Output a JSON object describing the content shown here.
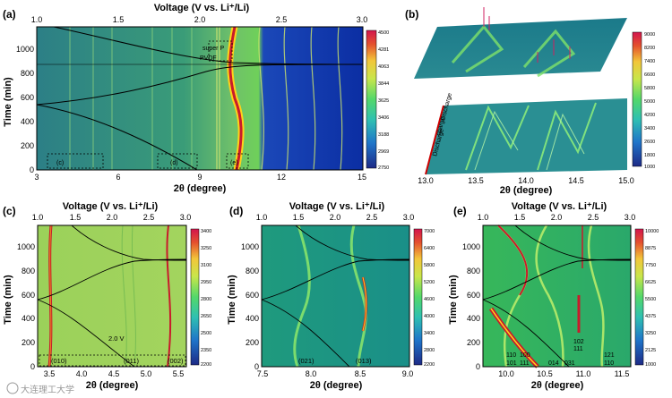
{
  "panels": {
    "a": {
      "label": "(a)",
      "top_title": "Voltage (V vs. Li⁺/Li)",
      "top_ticks": [
        "1.0",
        "1.5",
        "2.0",
        "2.5",
        "3.0"
      ],
      "xlabel": "2θ (degree)",
      "x_ticks": [
        "3",
        "6",
        "9",
        "12",
        "15"
      ],
      "ylabel": "Time (min)",
      "y_ticks": [
        "0",
        "200",
        "400",
        "600",
        "800",
        "1000"
      ],
      "colorbar": [
        "4500",
        "4281",
        "4063",
        "3844",
        "3625",
        "3406",
        "3188",
        "2969",
        "2750"
      ],
      "annotations": [
        "super P",
        "PVDF"
      ],
      "box_labels": [
        "(c)",
        "(d)",
        "(e)"
      ]
    },
    "b": {
      "label": "(b)",
      "xlabel": "2θ (degree)",
      "x_ticks": [
        "13.0",
        "13.5",
        "14.0",
        "14.5",
        "15.0"
      ],
      "colorbar": [
        "9000",
        "8200",
        "7400",
        "6600",
        "5800",
        "5000",
        "4200",
        "3400",
        "2600",
        "1800",
        "1000"
      ],
      "side_labels": [
        "Discharge",
        "charge",
        "Discharge"
      ]
    },
    "c": {
      "label": "(c)",
      "top_title": "Voltage (V vs. Li⁺/Li)",
      "top_ticks": [
        "1.0",
        "1.5",
        "2.0",
        "2.5",
        "3.0"
      ],
      "xlabel": "2θ (degree)",
      "x_ticks": [
        "3.5",
        "4.0",
        "4.5",
        "5.0",
        "5.5"
      ],
      "ylabel": "Time (min)",
      "y_ticks": [
        "0",
        "200",
        "400",
        "600",
        "800",
        "1000"
      ],
      "colorbar": [
        "3400",
        "3250",
        "3100",
        "2950",
        "2800",
        "2650",
        "2500",
        "2350",
        "2200"
      ],
      "annotations": [
        "2.0 V",
        "(010)",
        "(011)",
        "(002)"
      ]
    },
    "d": {
      "label": "(d)",
      "top_title": "Voltage (V vs. Li⁺/Li)",
      "top_ticks": [
        "1.0",
        "1.5",
        "2.0",
        "2.5",
        "3.0"
      ],
      "xlabel": "2θ (degree)",
      "x_ticks": [
        "7.5",
        "8.0",
        "8.5",
        "9.0"
      ],
      "ylabel": "Time (min)",
      "y_ticks": [
        "0",
        "200",
        "400",
        "600",
        "800",
        "1000"
      ],
      "colorbar": [
        "7000",
        "6400",
        "5800",
        "5200",
        "4600",
        "4000",
        "3400",
        "2800",
        "2200"
      ],
      "annotations": [
        "(021)",
        "(013)"
      ]
    },
    "e": {
      "label": "(e)",
      "top_title": "Voltage (V vs. Li⁺/Li)",
      "top_ticks": [
        "1.0",
        "1.5",
        "2.0",
        "2.5",
        "3.0"
      ],
      "xlabel": "2θ (degree)",
      "x_ticks": [
        "10.0",
        "10.5",
        "11.0",
        "11.5"
      ],
      "ylabel": "Time (min)",
      "y_ticks": [
        "0",
        "200",
        "400",
        "600",
        "800",
        "1000"
      ],
      "colorbar": [
        "10000",
        "8875",
        "7750",
        "6625",
        "5500",
        "4375",
        "3250",
        "2125",
        "1000"
      ],
      "annotations": [
        "110",
        "101",
        "100",
        "111",
        "014",
        "031",
        "102",
        "111",
        "121",
        "110"
      ]
    }
  },
  "watermark": "大连理工大学",
  "colors": {
    "bg_blue": "#0a3aa6",
    "bg_teal": "#2a8f80",
    "bg_green": "#8fcf5a",
    "bright_yellow": "#ffd21a",
    "peak_red": "#c81b2b"
  }
}
